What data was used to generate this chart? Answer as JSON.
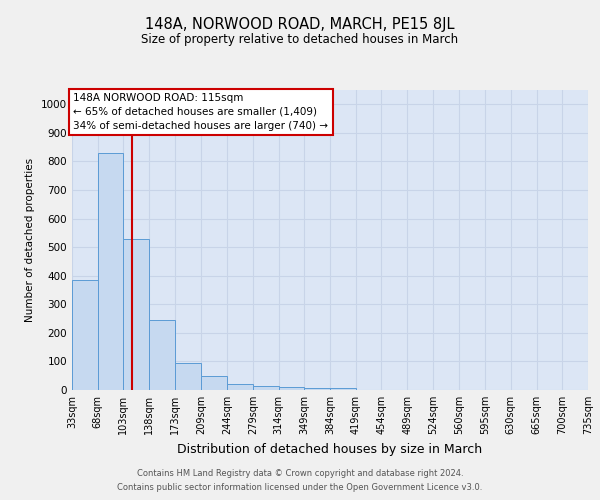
{
  "title": "148A, NORWOOD ROAD, MARCH, PE15 8JL",
  "subtitle": "Size of property relative to detached houses in March",
  "xlabel": "Distribution of detached houses by size in March",
  "ylabel": "Number of detached properties",
  "footnote1": "Contains HM Land Registry data © Crown copyright and database right 2024.",
  "footnote2": "Contains public sector information licensed under the Open Government Licence v3.0.",
  "bins": [
    33,
    68,
    103,
    138,
    173,
    209,
    244,
    279,
    314,
    349,
    384,
    419,
    454,
    489,
    524,
    560,
    595,
    630,
    665,
    700,
    735
  ],
  "bar_heights": [
    385,
    830,
    530,
    245,
    95,
    50,
    22,
    15,
    10,
    8,
    8,
    0,
    0,
    0,
    0,
    0,
    0,
    0,
    0,
    0
  ],
  "bar_color": "#c6d9f0",
  "bar_edge_color": "#5b9bd5",
  "grid_color": "#c8d4e8",
  "background_color": "#dce6f5",
  "property_line_x": 115,
  "annotation_box_text_line1": "148A NORWOOD ROAD: 115sqm",
  "annotation_box_text_line2": "← 65% of detached houses are smaller (1,409)",
  "annotation_box_text_line3": "34% of semi-detached houses are larger (740) →",
  "annotation_box_color": "#cc0000",
  "ylim": [
    0,
    1050
  ],
  "yticks": [
    0,
    100,
    200,
    300,
    400,
    500,
    600,
    700,
    800,
    900,
    1000
  ],
  "title_fontsize": 10.5,
  "subtitle_fontsize": 8.5,
  "xlabel_fontsize": 9,
  "ylabel_fontsize": 7.5,
  "tick_fontsize": 7,
  "footnote_fontsize": 6,
  "annotation_fontsize": 7.5
}
